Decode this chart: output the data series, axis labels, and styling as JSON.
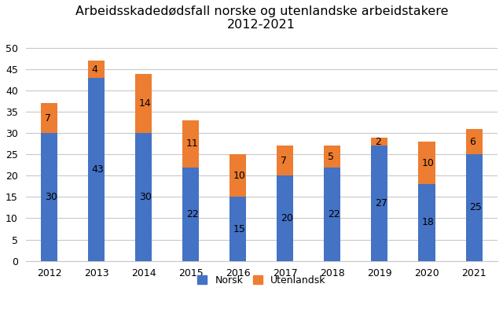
{
  "title_line1": "Arbeidsskadedødsfall norske og utenlandske arbeidstakere",
  "title_line2": "2012-2021",
  "years": [
    2012,
    2013,
    2014,
    2015,
    2016,
    2017,
    2018,
    2019,
    2020,
    2021
  ],
  "norsk": [
    30,
    43,
    30,
    22,
    15,
    20,
    22,
    27,
    18,
    25
  ],
  "utenlandsk": [
    7,
    4,
    14,
    11,
    10,
    7,
    5,
    2,
    10,
    6
  ],
  "norsk_color": "#4472C4",
  "utenlandsk_color": "#ED7D31",
  "ylim": [
    0,
    52
  ],
  "yticks": [
    0,
    5,
    10,
    15,
    20,
    25,
    30,
    35,
    40,
    45,
    50
  ],
  "legend_norsk": "Norsk",
  "legend_utenlandsk": "Utenlandsk",
  "background_color": "#ffffff",
  "grid_color": "#c8c8c8",
  "title_fontsize": 11.5,
  "label_fontsize": 9,
  "tick_fontsize": 9,
  "legend_fontsize": 9,
  "bar_width": 0.35
}
